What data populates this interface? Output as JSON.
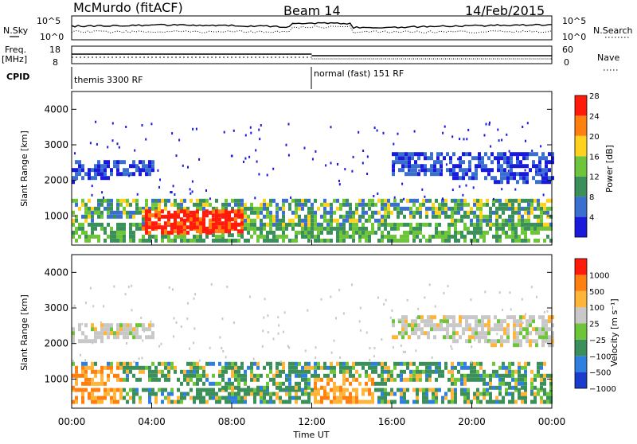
{
  "header": {
    "station": "McMurdo (fitACF)",
    "beam": "Beam 14",
    "date": "14/Feb/2015"
  },
  "noise_panel": {
    "left_label": "N.Sky",
    "right_label": "N.Search",
    "left_ticks": [
      "10^5",
      "10^0"
    ],
    "right_ticks": [
      "10^5",
      "10^0"
    ]
  },
  "freq_panel": {
    "left_label_1": "Freq.",
    "left_label_2": "[MHz]",
    "right_label": "Nave",
    "left_ticks": [
      "18",
      "8"
    ],
    "right_ticks": [
      "60",
      "0"
    ]
  },
  "cpid": {
    "label": "CPID",
    "segments": [
      {
        "label": "themis 3300 RF",
        "start_hour": 0,
        "end_hour": 12
      },
      {
        "label": "normal (fast) 151 RF",
        "start_hour": 12,
        "end_hour": 24
      }
    ]
  },
  "chart_data": [
    {
      "type": "heatmap",
      "title": "",
      "ylabel": "Slant Range [km]",
      "xlabel": "",
      "ylim": [
        180,
        4500
      ],
      "yticks": [
        "1000",
        "2000",
        "3000",
        "4000"
      ],
      "xlim": [
        0,
        24
      ],
      "colorbar_label": "Power [dB]",
      "colorbar_ticks": [
        "4",
        "8",
        "12",
        "16",
        "20",
        "24",
        "28"
      ],
      "colorbar_colors": [
        "#1a1adc",
        "#3a6fcf",
        "#3a8f5a",
        "#6fc53a",
        "#ffd21f",
        "#ff7f0f",
        "#ff1a0a"
      ],
      "bands": [
        {
          "name": "near_range",
          "start_hour": 0,
          "end_hour": 24,
          "range_km": [
            250,
            700
          ]
        },
        {
          "name": "main_band",
          "start_hour": 0,
          "end_hour": 24,
          "range_km": [
            700,
            1400
          ]
        },
        {
          "name": "high_power_patch",
          "start_hour": 3.5,
          "end_hour": 8.5,
          "range_km": [
            400,
            1100
          ]
        },
        {
          "name": "upper_band_early",
          "start_hour": 0,
          "end_hour": 4,
          "range_km": [
            1900,
            2500
          ]
        },
        {
          "name": "upper_band_late",
          "start_hour": 16,
          "end_hour": 24,
          "range_km": [
            1900,
            2700
          ]
        }
      ]
    },
    {
      "type": "heatmap",
      "title": "",
      "ylabel": "Slant Range [km]",
      "xlabel": "Time UT",
      "ylim": [
        180,
        4500
      ],
      "yticks": [
        "1000",
        "2000",
        "3000",
        "4000"
      ],
      "xlim": [
        0,
        24
      ],
      "xticks": [
        "00:00",
        "04:00",
        "08:00",
        "12:00",
        "16:00",
        "20:00",
        "00:00"
      ],
      "colorbar_label": "Velocity [m s⁻¹]",
      "colorbar_ticks": [
        "1000",
        "500",
        "100",
        "25",
        "−25",
        "−100",
        "−500",
        "−1000"
      ],
      "colorbar_colors": [
        "#1a3ccc",
        "#2f7fe0",
        "#3a8f5a",
        "#6fc53a",
        "#c8c8c8",
        "#ffb43a",
        "#ff7f0f",
        "#ff1a0a"
      ],
      "bands": [
        {
          "name": "near_range",
          "start_hour": 0,
          "end_hour": 24,
          "range_km": [
            300,
            700
          ]
        },
        {
          "name": "main_band",
          "start_hour": 0,
          "end_hour": 24,
          "range_km": [
            700,
            1400
          ]
        },
        {
          "name": "upper_band_early",
          "start_hour": 0,
          "end_hour": 4,
          "range_km": [
            1900,
            2500
          ]
        },
        {
          "name": "upper_band_late",
          "start_hour": 16,
          "end_hour": 24,
          "range_km": [
            1900,
            2700
          ]
        }
      ]
    }
  ]
}
